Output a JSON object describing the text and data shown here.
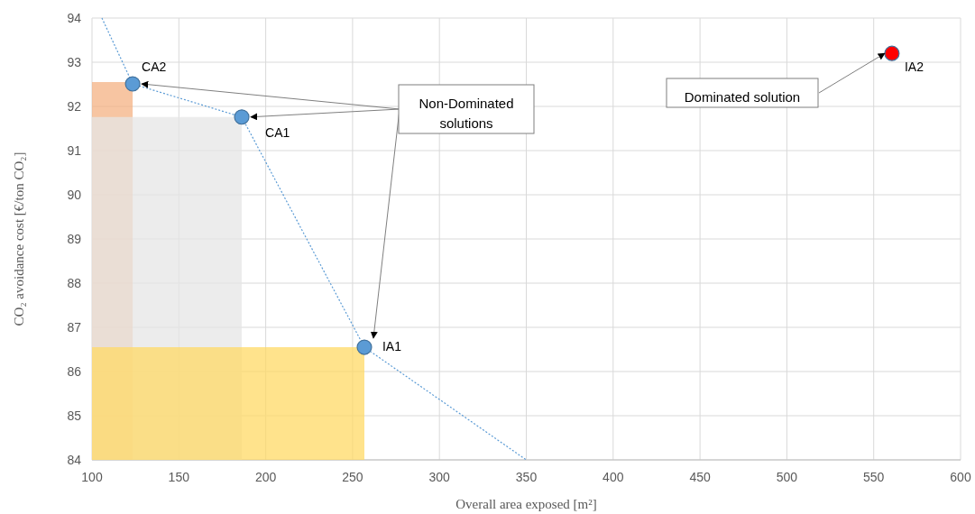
{
  "chart_data": {
    "type": "scatter",
    "xlabel": "Overall area exposed [m²]",
    "ylabel": "CO₂ avoidance cost [€/ton CO₂]",
    "xlim": [
      100,
      600
    ],
    "xticks": [
      100,
      150,
      200,
      250,
      300,
      350,
      400,
      450,
      500,
      550,
      600
    ],
    "ylim": [
      84,
      94
    ],
    "yticks": [
      84,
      85,
      86,
      87,
      88,
      89,
      90,
      91,
      92,
      93,
      94
    ],
    "grid": true,
    "series": [
      {
        "type": "area",
        "color": "#f4b183",
        "x": [
          100,
          123.4
        ],
        "values": [
          92.55,
          92.55
        ]
      },
      {
        "type": "area",
        "color": "#e6e6e6",
        "x": [
          100,
          186.2
        ],
        "values": [
          91.76,
          91.76
        ]
      },
      {
        "type": "area",
        "color": "#ffd966",
        "x": [
          100,
          256.8
        ],
        "values": [
          86.55,
          86.55
        ]
      },
      {
        "type": "line",
        "color": "#5b9bd5",
        "line_style": "dotted",
        "x": [
          105.7,
          123.4,
          186.2,
          256.8,
          350
        ],
        "values": [
          94,
          92.51,
          91.76,
          86.55,
          84
        ]
      },
      {
        "marker": "circle",
        "color": "#5b9bd5",
        "x": [
          123.4,
          186.2,
          256.8
        ],
        "values": [
          92.51,
          91.76,
          86.55
        ]
      },
      {
        "marker": "circle",
        "color": "#ff0000",
        "x": [
          560.5
        ],
        "values": [
          93.2
        ]
      }
    ],
    "annotations": [
      {
        "text": "CA2",
        "x": 123.4,
        "y": 92.51
      },
      {
        "text": "CA1",
        "x": 186.2,
        "y": 91.76
      },
      {
        "text": "IA1",
        "x": 256.8,
        "y": 86.55
      },
      {
        "text": "IA2",
        "x": 560.5,
        "y": 93.2
      },
      "Non-Dominated solutions",
      "Dominated solution"
    ]
  }
}
